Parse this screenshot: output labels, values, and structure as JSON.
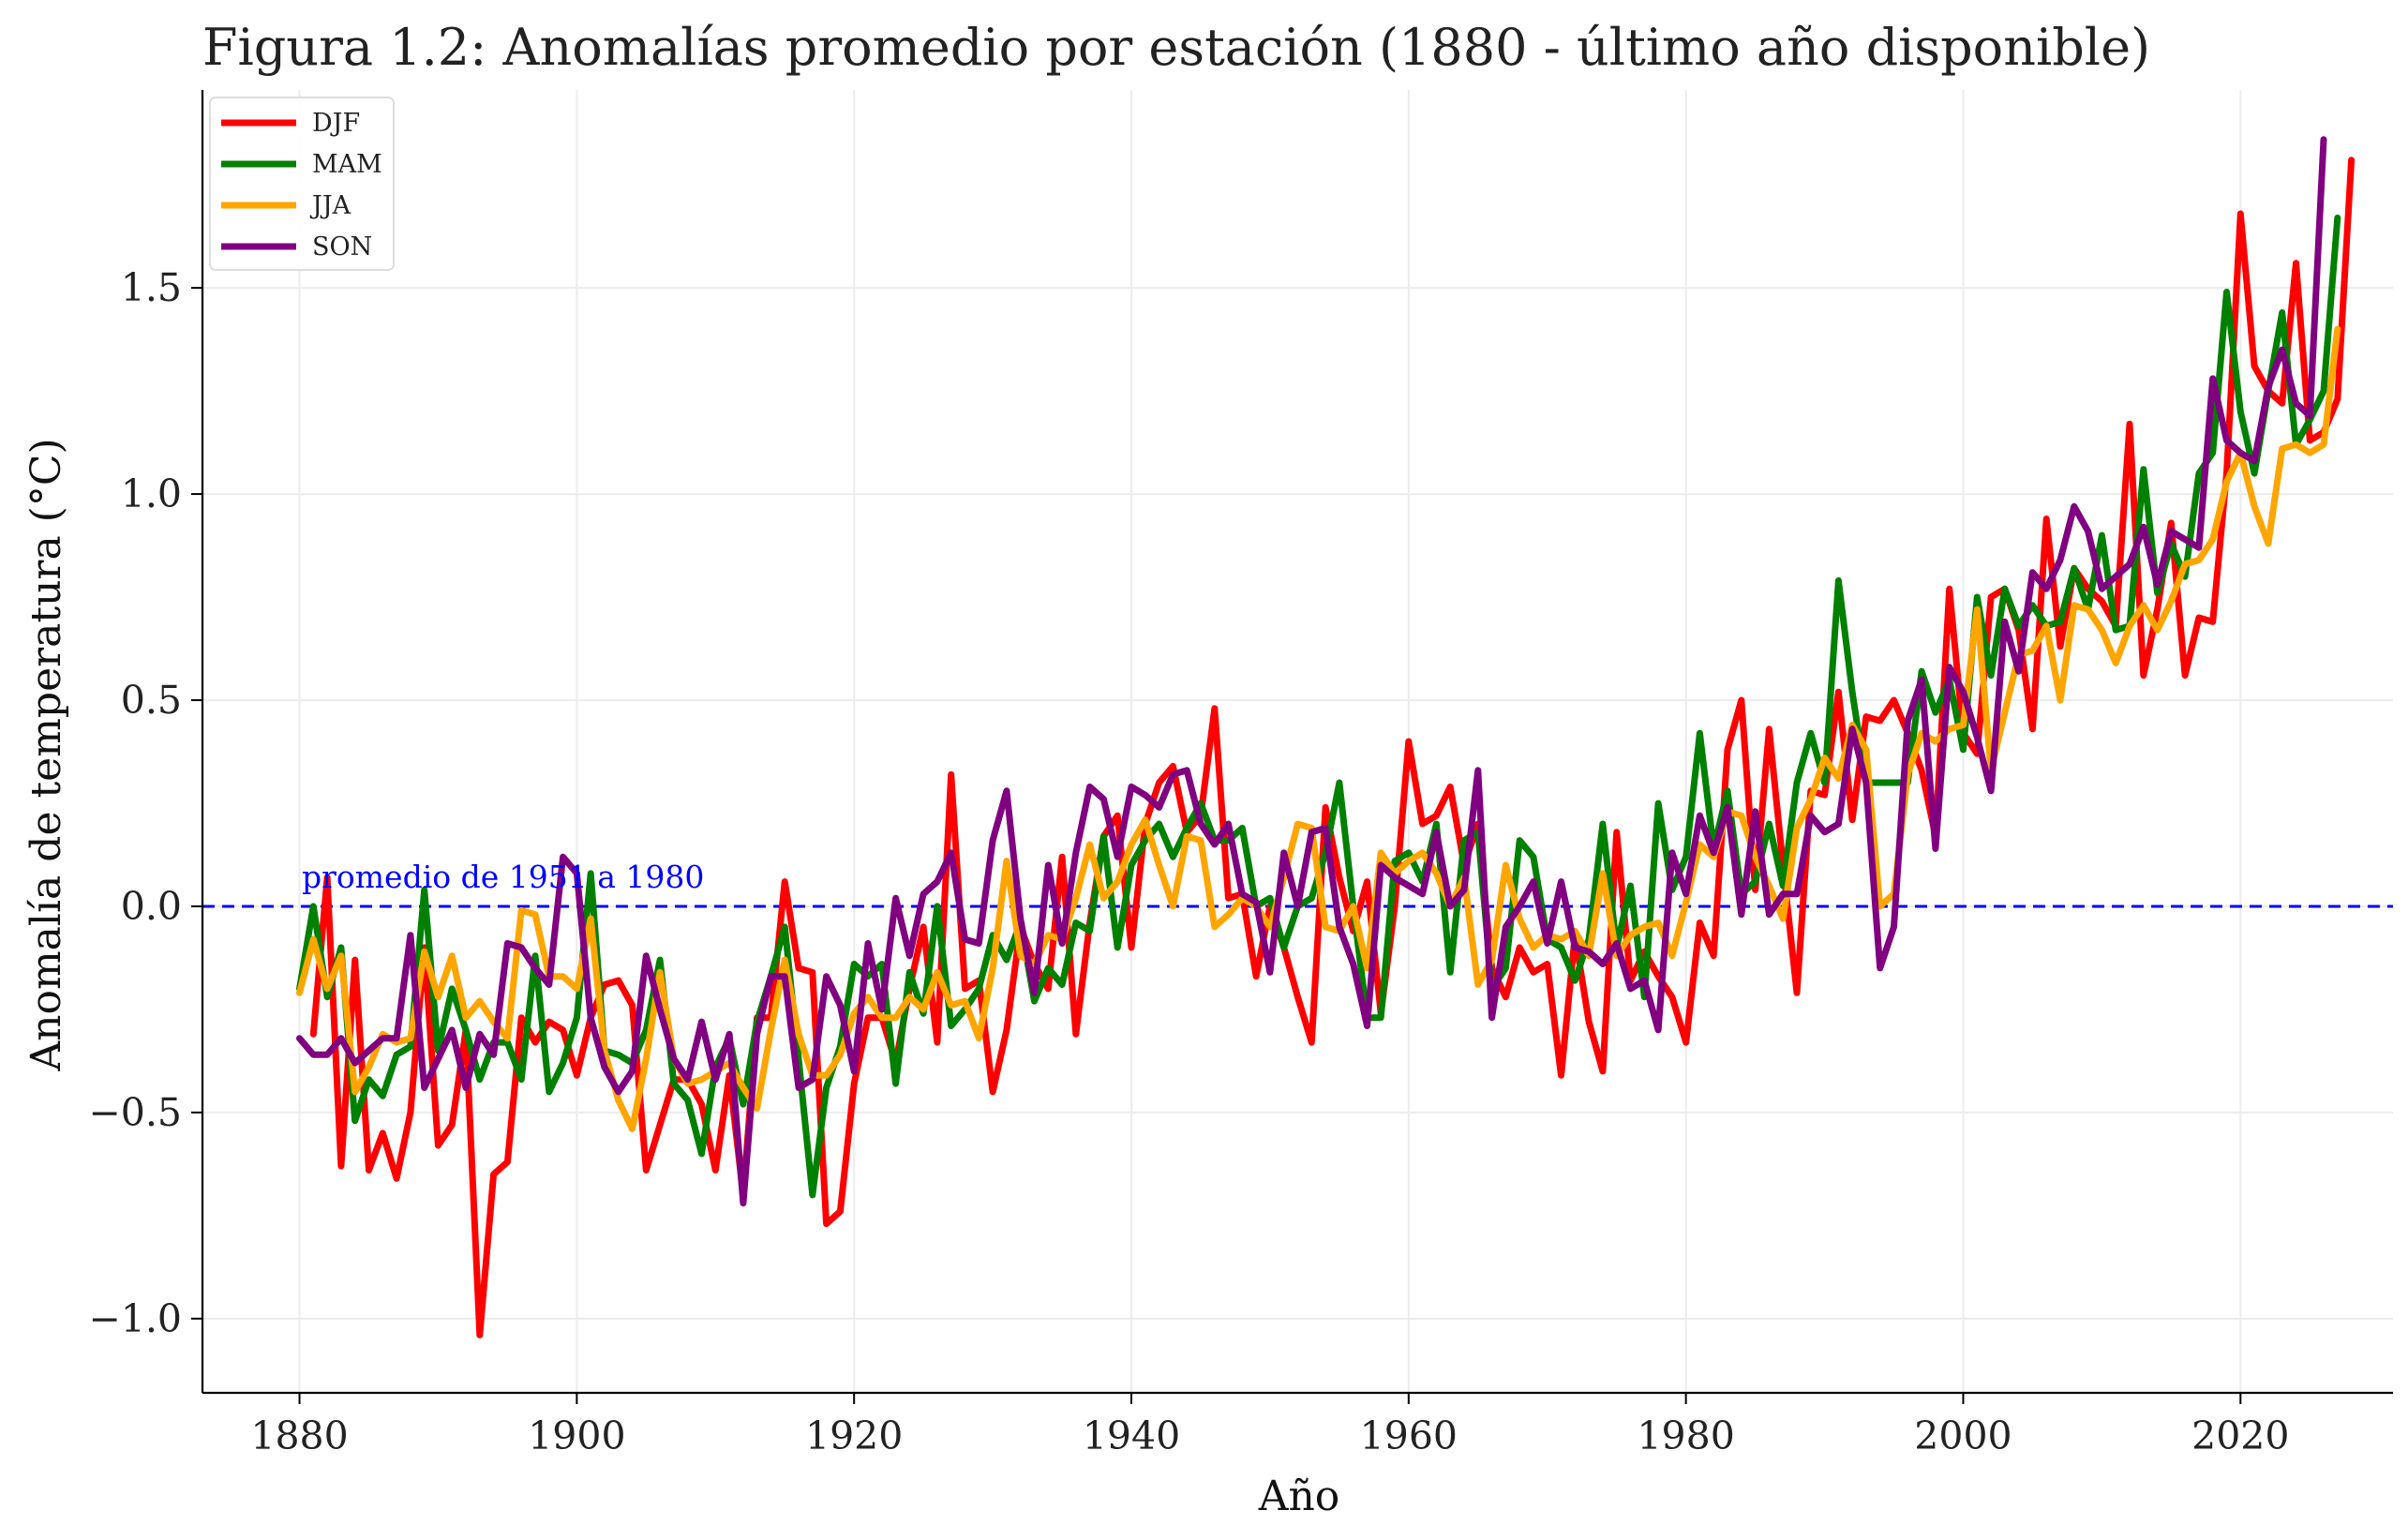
{
  "chart_data": {
    "type": "line",
    "title": "Figura 1.2: Anomalías promedio por estación (1880 - último año disponible)",
    "xlabel": "Año",
    "ylabel": "Anomalía de temperatura (°C)",
    "xlim": [
      1873,
      2031
    ],
    "ylim": [
      -1.18,
      1.98
    ],
    "xticks": [
      1880,
      1900,
      1920,
      1940,
      1960,
      1980,
      2000,
      2020
    ],
    "xtick_labels": [
      "1880",
      "1900",
      "1920",
      "1940",
      "1960",
      "1980",
      "2000",
      "2020"
    ],
    "yticks": [
      -1.0,
      -0.5,
      0.0,
      0.5,
      1.0,
      1.5
    ],
    "ytick_labels": [
      "−1.0",
      "−0.5",
      "0.0",
      "0.5",
      "1.0",
      "1.5"
    ],
    "grid": true,
    "legend_position": "top-left",
    "reference_line": {
      "y": 0.0,
      "label": "promedio de 1951 a 1980",
      "color": "#0000ff",
      "style": "dashed"
    },
    "series": [
      {
        "name": "DJF",
        "color": "#ff0000",
        "x_start": 1881,
        "values": [
          -0.31,
          0.07,
          -0.63,
          -0.13,
          -0.64,
          -0.55,
          -0.66,
          -0.5,
          -0.1,
          -0.58,
          -0.53,
          -0.3,
          -1.04,
          -0.65,
          -0.62,
          -0.27,
          -0.33,
          -0.28,
          -0.3,
          -0.41,
          -0.27,
          -0.19,
          -0.18,
          -0.24,
          -0.64,
          -0.53,
          -0.42,
          -0.42,
          -0.48,
          -0.64,
          -0.41,
          -0.7,
          -0.27,
          -0.27,
          0.06,
          -0.15,
          -0.16,
          -0.77,
          -0.74,
          -0.43,
          -0.27,
          -0.27,
          -0.38,
          -0.2,
          -0.05,
          -0.33,
          0.32,
          -0.2,
          -0.18,
          -0.45,
          -0.3,
          -0.05,
          -0.14,
          -0.2,
          0.12,
          -0.31,
          -0.04,
          0.17,
          0.22,
          -0.1,
          0.2,
          0.3,
          0.34,
          0.18,
          0.22,
          0.48,
          0.02,
          0.03,
          -0.17,
          0.0,
          -0.1,
          -0.22,
          -0.33,
          0.24,
          0.07,
          -0.06,
          0.06,
          -0.26,
          0.0,
          0.4,
          0.2,
          0.22,
          0.29,
          0.1,
          0.2,
          -0.15,
          -0.22,
          -0.1,
          -0.16,
          -0.14,
          -0.41,
          -0.07,
          -0.28,
          -0.4,
          0.18,
          -0.18,
          -0.11,
          -0.17,
          -0.22,
          -0.33,
          -0.04,
          -0.12,
          0.38,
          0.5,
          0.04,
          0.43,
          0.1,
          -0.21,
          0.28,
          0.27,
          0.52,
          0.21,
          0.46,
          0.45,
          0.5,
          0.42,
          0.33,
          0.17,
          0.77,
          0.42,
          0.37,
          0.75,
          0.77,
          0.67,
          0.43,
          0.94,
          0.63,
          0.82,
          0.77,
          0.74,
          0.68,
          1.17,
          0.56,
          0.72,
          0.93,
          0.56,
          0.7,
          0.69,
          1.05,
          1.68,
          1.31,
          1.25,
          1.22,
          1.56,
          1.13,
          1.15,
          1.23,
          1.81
        ]
      },
      {
        "name": "MAM",
        "color": "#008000",
        "x_start": 1880,
        "values": [
          -0.2,
          0.0,
          -0.22,
          -0.1,
          -0.52,
          -0.42,
          -0.46,
          -0.36,
          -0.34,
          0.04,
          -0.35,
          -0.2,
          -0.3,
          -0.42,
          -0.33,
          -0.33,
          -0.42,
          -0.12,
          -0.45,
          -0.38,
          -0.27,
          0.08,
          -0.35,
          -0.36,
          -0.38,
          -0.3,
          -0.13,
          -0.43,
          -0.47,
          -0.6,
          -0.39,
          -0.32,
          -0.48,
          -0.28,
          -0.17,
          -0.05,
          -0.37,
          -0.7,
          -0.44,
          -0.34,
          -0.14,
          -0.17,
          -0.14,
          -0.43,
          -0.16,
          -0.26,
          0.0,
          -0.29,
          -0.25,
          -0.2,
          -0.07,
          -0.13,
          -0.04,
          -0.23,
          -0.15,
          -0.19,
          -0.04,
          -0.06,
          0.17,
          -0.1,
          0.1,
          0.16,
          0.2,
          0.12,
          0.19,
          0.25,
          0.16,
          0.16,
          0.19,
          0.0,
          0.02,
          -0.1,
          0.0,
          0.02,
          0.13,
          0.3,
          0.0,
          -0.27,
          -0.27,
          0.11,
          0.13,
          0.06,
          0.2,
          -0.16,
          0.16,
          0.18,
          -0.2,
          -0.15,
          0.16,
          0.12,
          -0.08,
          -0.1,
          -0.18,
          -0.08,
          0.2,
          -0.1,
          0.05,
          -0.22,
          0.25,
          0.04,
          0.12,
          0.42,
          0.14,
          0.28,
          0.03,
          0.06,
          0.2,
          0.05,
          0.3,
          0.42,
          0.3,
          0.79,
          0.52,
          0.3,
          0.3,
          0.3,
          0.3,
          0.57,
          0.47,
          0.55,
          0.38,
          0.75,
          0.56,
          0.77,
          0.68,
          0.73,
          0.68,
          0.69,
          0.82,
          0.72,
          0.9,
          0.67,
          0.68,
          1.06,
          0.76,
          0.88,
          0.8,
          1.05,
          1.1,
          1.49,
          1.2,
          1.05,
          1.25,
          1.44,
          1.12,
          1.18,
          1.25,
          1.67
        ]
      },
      {
        "name": "JJA",
        "color": "#ffa500",
        "x_start": 1880,
        "values": [
          -0.21,
          -0.08,
          -0.2,
          -0.12,
          -0.45,
          -0.39,
          -0.31,
          -0.33,
          -0.32,
          -0.11,
          -0.22,
          -0.12,
          -0.27,
          -0.23,
          -0.28,
          -0.32,
          -0.01,
          -0.02,
          -0.17,
          -0.17,
          -0.2,
          -0.03,
          -0.35,
          -0.47,
          -0.54,
          -0.37,
          -0.16,
          -0.37,
          -0.43,
          -0.42,
          -0.4,
          -0.38,
          -0.44,
          -0.49,
          -0.3,
          -0.13,
          -0.31,
          -0.41,
          -0.41,
          -0.36,
          -0.26,
          -0.22,
          -0.27,
          -0.27,
          -0.22,
          -0.25,
          -0.16,
          -0.24,
          -0.23,
          -0.32,
          -0.15,
          0.11,
          -0.12,
          -0.14,
          -0.07,
          -0.08,
          0.02,
          0.15,
          0.02,
          0.06,
          0.15,
          0.21,
          0.1,
          0.0,
          0.17,
          0.16,
          -0.05,
          -0.02,
          0.02,
          0.0,
          -0.05,
          0.07,
          0.2,
          0.19,
          -0.05,
          -0.06,
          0.0,
          -0.15,
          0.13,
          0.08,
          0.11,
          0.13,
          0.08,
          0.0,
          0.07,
          -0.19,
          -0.13,
          0.1,
          -0.03,
          -0.1,
          -0.07,
          -0.08,
          -0.06,
          -0.12,
          0.08,
          -0.12,
          -0.07,
          -0.05,
          -0.04,
          -0.12,
          0.01,
          0.15,
          0.12,
          0.23,
          0.22,
          0.12,
          0.05,
          -0.03,
          0.19,
          0.26,
          0.36,
          0.31,
          0.44,
          0.38,
          0.0,
          0.03,
          0.32,
          0.42,
          0.4,
          0.43,
          0.44,
          0.72,
          0.33,
          0.47,
          0.61,
          0.62,
          0.68,
          0.5,
          0.73,
          0.72,
          0.67,
          0.59,
          0.68,
          0.73,
          0.67,
          0.74,
          0.83,
          0.84,
          0.89,
          1.03,
          1.1,
          0.97,
          0.88,
          1.11,
          1.12,
          1.1,
          1.12,
          1.4
        ]
      },
      {
        "name": "SON",
        "color": "#800080",
        "x_start": 1880,
        "values": [
          -0.32,
          -0.36,
          -0.36,
          -0.32,
          -0.38,
          -0.35,
          -0.32,
          -0.32,
          -0.07,
          -0.44,
          -0.37,
          -0.3,
          -0.44,
          -0.31,
          -0.36,
          -0.09,
          -0.1,
          -0.15,
          -0.19,
          0.12,
          0.08,
          -0.27,
          -0.39,
          -0.45,
          -0.4,
          -0.12,
          -0.25,
          -0.37,
          -0.42,
          -0.28,
          -0.42,
          -0.31,
          -0.72,
          -0.31,
          -0.17,
          -0.17,
          -0.44,
          -0.42,
          -0.17,
          -0.24,
          -0.4,
          -0.09,
          -0.25,
          0.02,
          -0.12,
          0.03,
          0.06,
          0.13,
          -0.08,
          -0.09,
          0.16,
          0.28,
          -0.03,
          -0.21,
          0.1,
          -0.09,
          0.13,
          0.29,
          0.26,
          0.12,
          0.29,
          0.27,
          0.24,
          0.32,
          0.33,
          0.2,
          0.15,
          0.2,
          0.03,
          0.01,
          -0.16,
          0.13,
          0.0,
          0.18,
          0.19,
          -0.05,
          -0.14,
          -0.29,
          0.1,
          0.07,
          0.05,
          0.03,
          0.18,
          0.0,
          0.04,
          0.33,
          -0.27,
          -0.05,
          0.0,
          0.06,
          -0.09,
          0.06,
          -0.1,
          -0.11,
          -0.14,
          -0.09,
          -0.2,
          -0.18,
          -0.3,
          0.13,
          0.03,
          0.22,
          0.13,
          0.24,
          -0.02,
          0.23,
          -0.02,
          0.03,
          0.03,
          0.22,
          0.18,
          0.2,
          0.43,
          0.3,
          -0.15,
          -0.05,
          0.45,
          0.55,
          0.14,
          0.58,
          0.52,
          0.41,
          0.28,
          0.69,
          0.57,
          0.81,
          0.77,
          0.84,
          0.97,
          0.91,
          0.77,
          0.8,
          0.83,
          0.92,
          0.78,
          0.91,
          0.89,
          0.87,
          1.28,
          1.13,
          1.1,
          1.08,
          1.26,
          1.35,
          1.22,
          1.19,
          1.86
        ]
      }
    ]
  }
}
